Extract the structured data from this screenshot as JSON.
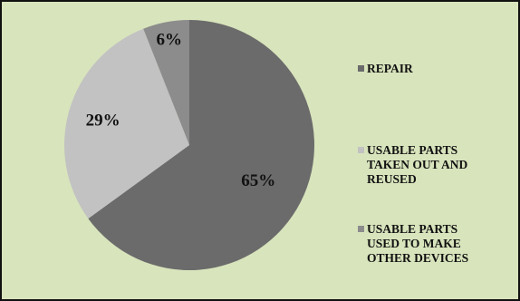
{
  "chart_data": {
    "type": "pie",
    "title": "",
    "categories": [
      "REPAIR",
      "USABLE PARTS TAKEN OUT AND REUSED",
      "USABLE PARTS USED TO MAKE OTHER DEVICES"
    ],
    "values": [
      65,
      29,
      6
    ],
    "labels": [
      "65%",
      "29%",
      "6%"
    ],
    "colors": [
      "#6b6b6b",
      "#c2c2c2",
      "#8c8c8c"
    ],
    "start_angle": "12 o'clock",
    "direction": "clockwise",
    "legend": {
      "position": "right",
      "lines": [
        [
          "REPAIR"
        ],
        [
          "USABLE PARTS",
          "TAKEN OUT AND",
          "REUSED"
        ],
        [
          "USABLE PARTS",
          "USED TO MAKE",
          "OTHER DEVICES"
        ]
      ]
    }
  },
  "background_color": "#d8e4bc"
}
